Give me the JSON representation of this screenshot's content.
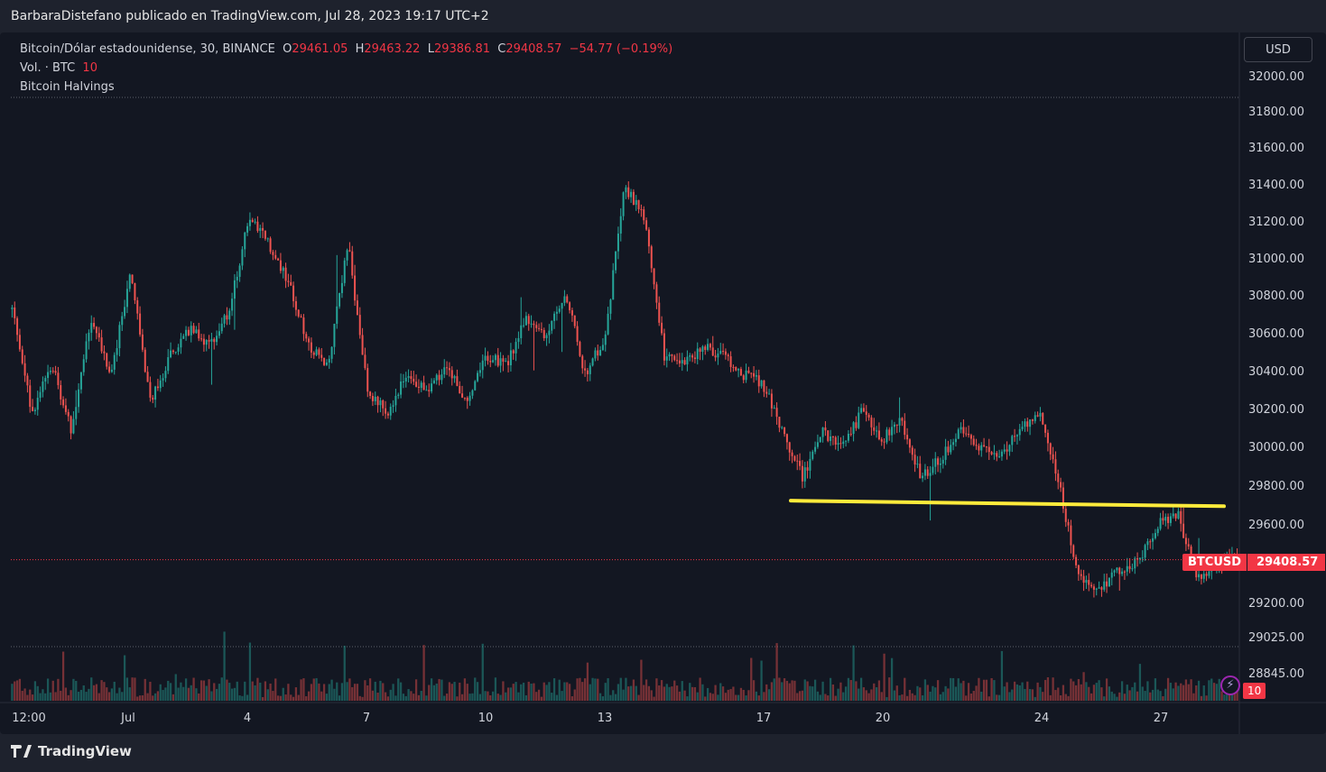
{
  "header": {
    "attribution": "BarbaraDistefano publicado en TradingView.com, Jul 28, 2023 19:17 UTC+2"
  },
  "legend": {
    "symbol_line": "Bitcoin/Dólar estadounidense, 30, BINANCE",
    "open_label": "O",
    "open": "29461.05",
    "high_label": "H",
    "high": "29463.22",
    "low_label": "L",
    "low": "29386.81",
    "close_label": "C",
    "close": "29408.57",
    "change": "−54.77 (−0.19%)",
    "volume_label": "Vol. · BTC",
    "volume_value": "10",
    "indicator": "Bitcoin Halvings"
  },
  "currency_button": "USD",
  "price_tag": {
    "symbol": "BTCUSD",
    "value": "29408.57"
  },
  "volume_tag": "10",
  "footer": {
    "brand": "TradingView"
  },
  "colors": {
    "up": "#26a69a",
    "down": "#ef5350",
    "support_line": "#ffeb3b",
    "background": "#131722",
    "price_tag": "#f23645"
  },
  "chart_data": {
    "type": "candlestick",
    "symbol": "BTCUSD",
    "interval": "30",
    "exchange": "BINANCE",
    "y_axis_ticks": [
      "32000.00",
      "31800.00",
      "31600.00",
      "31400.00",
      "31200.00",
      "31000.00",
      "30800.00",
      "30600.00",
      "30400.00",
      "30200.00",
      "30000.00",
      "29800.00",
      "29600.00",
      "29200.00",
      "29025.00",
      "28845.00"
    ],
    "ylim": [
      28700,
      32120
    ],
    "x_axis_ticks": [
      "12:00",
      "Jul",
      "4",
      "7",
      "10",
      "13",
      "17",
      "20",
      "24",
      "27"
    ],
    "last_price": 29408.57,
    "support_line": {
      "start": {
        "date": "Jul 18",
        "price": 29720
      },
      "end": {
        "date": "Jul 28",
        "price": 29700
      }
    },
    "price_path": [
      {
        "t": 0,
        "p": 30750
      },
      {
        "t": 1,
        "p": 30200
      },
      {
        "t": 2,
        "p": 30450
      },
      {
        "t": 3,
        "p": 30100
      },
      {
        "t": 4,
        "p": 30700
      },
      {
        "t": 5,
        "p": 30400
      },
      {
        "t": 6,
        "p": 30950
      },
      {
        "t": 7,
        "p": 30250
      },
      {
        "t": 8,
        "p": 30500
      },
      {
        "t": 9,
        "p": 30650
      },
      {
        "t": 10,
        "p": 30550
      },
      {
        "t": 11,
        "p": 30750
      },
      {
        "t": 12,
        "p": 31250
      },
      {
        "t": 13,
        "p": 31100
      },
      {
        "t": 14,
        "p": 30900
      },
      {
        "t": 15,
        "p": 30550
      },
      {
        "t": 16,
        "p": 30450
      },
      {
        "t": 17,
        "p": 31100
      },
      {
        "t": 18,
        "p": 30300
      },
      {
        "t": 19,
        "p": 30200
      },
      {
        "t": 20,
        "p": 30400
      },
      {
        "t": 21,
        "p": 30300
      },
      {
        "t": 22,
        "p": 30450
      },
      {
        "t": 23,
        "p": 30250
      },
      {
        "t": 24,
        "p": 30500
      },
      {
        "t": 25,
        "p": 30450
      },
      {
        "t": 26,
        "p": 30700
      },
      {
        "t": 27,
        "p": 30600
      },
      {
        "t": 28,
        "p": 30850
      },
      {
        "t": 29,
        "p": 30400
      },
      {
        "t": 30,
        "p": 30600
      },
      {
        "t": 31,
        "p": 31400
      },
      {
        "t": 32,
        "p": 31250
      },
      {
        "t": 33,
        "p": 30500
      },
      {
        "t": 34,
        "p": 30450
      },
      {
        "t": 35,
        "p": 30550
      },
      {
        "t": 36,
        "p": 30500
      },
      {
        "t": 37,
        "p": 30400
      },
      {
        "t": 38,
        "p": 30350
      },
      {
        "t": 39,
        "p": 30100
      },
      {
        "t": 40,
        "p": 29850
      },
      {
        "t": 41,
        "p": 30100
      },
      {
        "t": 42,
        "p": 30000
      },
      {
        "t": 43,
        "p": 30200
      },
      {
        "t": 44,
        "p": 30050
      },
      {
        "t": 45,
        "p": 30150
      },
      {
        "t": 46,
        "p": 29850
      },
      {
        "t": 47,
        "p": 29950
      },
      {
        "t": 48,
        "p": 30100
      },
      {
        "t": 49,
        "p": 30000
      },
      {
        "t": 50,
        "p": 29950
      },
      {
        "t": 51,
        "p": 30100
      },
      {
        "t": 52,
        "p": 30200
      },
      {
        "t": 53,
        "p": 29800
      },
      {
        "t": 54,
        "p": 29300
      },
      {
        "t": 55,
        "p": 29250
      },
      {
        "t": 56,
        "p": 29350
      },
      {
        "t": 57,
        "p": 29400
      },
      {
        "t": 58,
        "p": 29600
      },
      {
        "t": 59,
        "p": 29650
      },
      {
        "t": 60,
        "p": 29300
      },
      {
        "t": 61,
        "p": 29400
      },
      {
        "t": 62,
        "p": 29408
      }
    ]
  }
}
